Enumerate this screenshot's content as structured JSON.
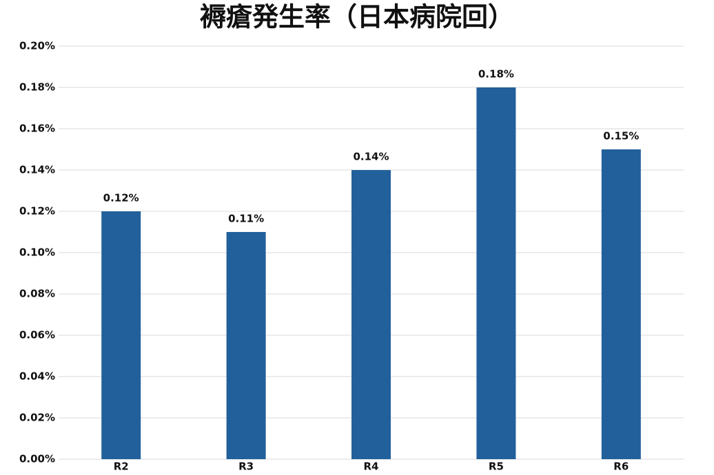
{
  "chart_data": {
    "type": "bar",
    "title": "褥瘡発生率（日本病院回）",
    "categories": [
      "R2",
      "R3",
      "R4",
      "R5",
      "R6"
    ],
    "values": [
      0.12,
      0.11,
      0.14,
      0.18,
      0.15
    ],
    "value_labels": [
      "0.12%",
      "0.11%",
      "0.14%",
      "0.18%",
      "0.15%"
    ],
    "color": "#21609b",
    "ylim": [
      0,
      0.2
    ],
    "yticks": [
      {
        "value": 0,
        "label": "0.00%"
      },
      {
        "value": 0.02,
        "label": "0.02%"
      },
      {
        "value": 0.04,
        "label": "0.04%"
      },
      {
        "value": 0.06,
        "label": "0.06%"
      },
      {
        "value": 0.08,
        "label": "0.08%"
      },
      {
        "value": 0.1,
        "label": "0.10%"
      },
      {
        "value": 0.12,
        "label": "0.12%"
      },
      {
        "value": 0.14,
        "label": "0.14%"
      },
      {
        "value": 0.16,
        "label": "0.16%"
      },
      {
        "value": 0.18,
        "label": "0.18%"
      },
      {
        "value": 0.2,
        "label": "0.20%"
      }
    ],
    "grid": true
  }
}
